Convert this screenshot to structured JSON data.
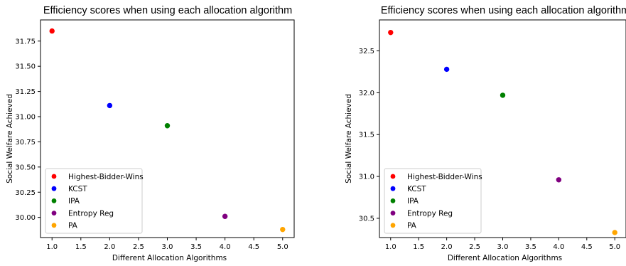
{
  "chart_data": [
    {
      "type": "scatter",
      "title": "Efficiency scores when using each allocation algorithm",
      "xlabel": "Different Allocation Algorithms",
      "ylabel": "Social Welfare Achieved",
      "xlim": [
        0.8,
        5.2
      ],
      "ylim": [
        29.8,
        31.96
      ],
      "xticks": [
        "1.0",
        "1.5",
        "2.0",
        "2.5",
        "3.0",
        "3.5",
        "4.0",
        "4.5",
        "5.0"
      ],
      "yticks": [
        "30.00",
        "30.25",
        "30.50",
        "30.75",
        "31.00",
        "31.25",
        "31.50",
        "31.75"
      ],
      "grid": false,
      "legend_position": "lower-left",
      "series": [
        {
          "name": "Highest-Bidder-Wins",
          "color": "#ff0000",
          "x": [
            1
          ],
          "y": [
            31.85
          ]
        },
        {
          "name": "KCST",
          "color": "#0000ff",
          "x": [
            2
          ],
          "y": [
            31.11
          ]
        },
        {
          "name": "IPA",
          "color": "#008000",
          "x": [
            3
          ],
          "y": [
            30.91
          ]
        },
        {
          "name": "Entropy Reg",
          "color": "#800080",
          "x": [
            4
          ],
          "y": [
            30.01
          ]
        },
        {
          "name": "PA",
          "color": "#ffa500",
          "x": [
            5
          ],
          "y": [
            29.88
          ]
        }
      ]
    },
    {
      "type": "scatter",
      "title": "Efficiency scores when using each allocation algorithm",
      "xlabel": "Different Allocation Algorithms",
      "ylabel": "Social Welfare Achieved",
      "xlim": [
        0.8,
        5.2
      ],
      "ylim": [
        30.27,
        32.87
      ],
      "xticks": [
        "1.0",
        "1.5",
        "2.0",
        "2.5",
        "3.0",
        "3.5",
        "4.0",
        "4.5",
        "5.0"
      ],
      "yticks": [
        "30.5",
        "31.0",
        "31.5",
        "32.0",
        "32.5"
      ],
      "grid": false,
      "legend_position": "lower-left",
      "series": [
        {
          "name": "Highest-Bidder-Wins",
          "color": "#ff0000",
          "x": [
            1
          ],
          "y": [
            32.72
          ]
        },
        {
          "name": "KCST",
          "color": "#0000ff",
          "x": [
            2
          ],
          "y": [
            32.28
          ]
        },
        {
          "name": "IPA",
          "color": "#008000",
          "x": [
            3
          ],
          "y": [
            31.97
          ]
        },
        {
          "name": "Entropy Reg",
          "color": "#800080",
          "x": [
            4
          ],
          "y": [
            30.96
          ]
        },
        {
          "name": "PA",
          "color": "#ffa500",
          "x": [
            5
          ],
          "y": [
            30.33
          ]
        }
      ]
    }
  ]
}
